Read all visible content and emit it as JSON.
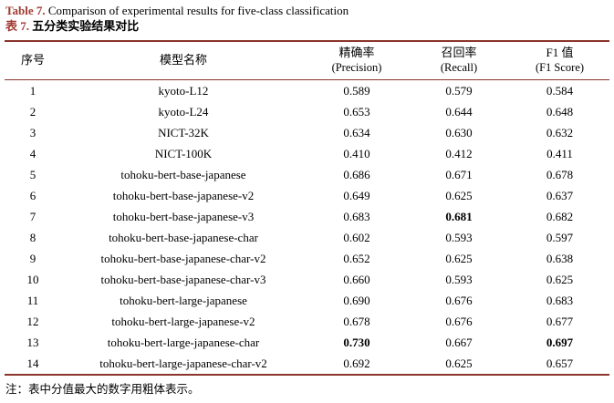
{
  "colors": {
    "accent": "#A03A31",
    "rule": "#8B352C"
  },
  "caption": {
    "en_label": "Table 7.",
    "en_text": " Comparison of experimental results for five-class classification",
    "zh_label": "表 7.",
    "zh_text": " 五分类实验结果对比"
  },
  "table": {
    "headers": {
      "no": {
        "line1": "序号",
        "line2": ""
      },
      "model": {
        "line1": "模型名称",
        "line2": ""
      },
      "precision": {
        "line1": "精确率",
        "line2": "(Precision)"
      },
      "recall": {
        "line1": "召回率",
        "line2": "(Recall)"
      },
      "f1": {
        "line1": "F1 值",
        "line2": "(F1 Score)"
      }
    },
    "rows": [
      {
        "no": "1",
        "model": "kyoto-L12",
        "precision": "0.589",
        "recall": "0.579",
        "f1": "0.584"
      },
      {
        "no": "2",
        "model": "kyoto-L24",
        "precision": "0.653",
        "recall": "0.644",
        "f1": "0.648"
      },
      {
        "no": "3",
        "model": "NICT-32K",
        "precision": "0.634",
        "recall": "0.630",
        "f1": "0.632"
      },
      {
        "no": "4",
        "model": "NICT-100K",
        "precision": "0.410",
        "recall": "0.412",
        "f1": "0.411"
      },
      {
        "no": "5",
        "model": "tohoku-bert-base-japanese",
        "precision": "0.686",
        "recall": "0.671",
        "f1": "0.678"
      },
      {
        "no": "6",
        "model": "tohoku-bert-base-japanese-v2",
        "precision": "0.649",
        "recall": "0.625",
        "f1": "0.637"
      },
      {
        "no": "7",
        "model": "tohoku-bert-base-japanese-v3",
        "precision": "0.683",
        "recall": "0.681",
        "f1": "0.682",
        "recall_bold": true
      },
      {
        "no": "8",
        "model": "tohoku-bert-base-japanese-char",
        "precision": "0.602",
        "recall": "0.593",
        "f1": "0.597"
      },
      {
        "no": "9",
        "model": "tohoku-bert-base-japanese-char-v2",
        "precision": "0.652",
        "recall": "0.625",
        "f1": "0.638"
      },
      {
        "no": "10",
        "model": "tohoku-bert-base-japanese-char-v3",
        "precision": "0.660",
        "recall": "0.593",
        "f1": "0.625"
      },
      {
        "no": "11",
        "model": "tohoku-bert-large-japanese",
        "precision": "0.690",
        "recall": "0.676",
        "f1": "0.683"
      },
      {
        "no": "12",
        "model": "tohoku-bert-large-japanese-v2",
        "precision": "0.678",
        "recall": "0.676",
        "f1": "0.677"
      },
      {
        "no": "13",
        "model": "tohoku-bert-large-japanese-char",
        "precision": "0.730",
        "recall": "0.667",
        "f1": "0.697",
        "precision_bold": true,
        "f1_bold": true
      },
      {
        "no": "14",
        "model": "tohoku-bert-large-japanese-char-v2",
        "precision": "0.692",
        "recall": "0.625",
        "f1": "0.657"
      }
    ]
  },
  "note": "注：表中分值最大的数字用粗体表示。"
}
